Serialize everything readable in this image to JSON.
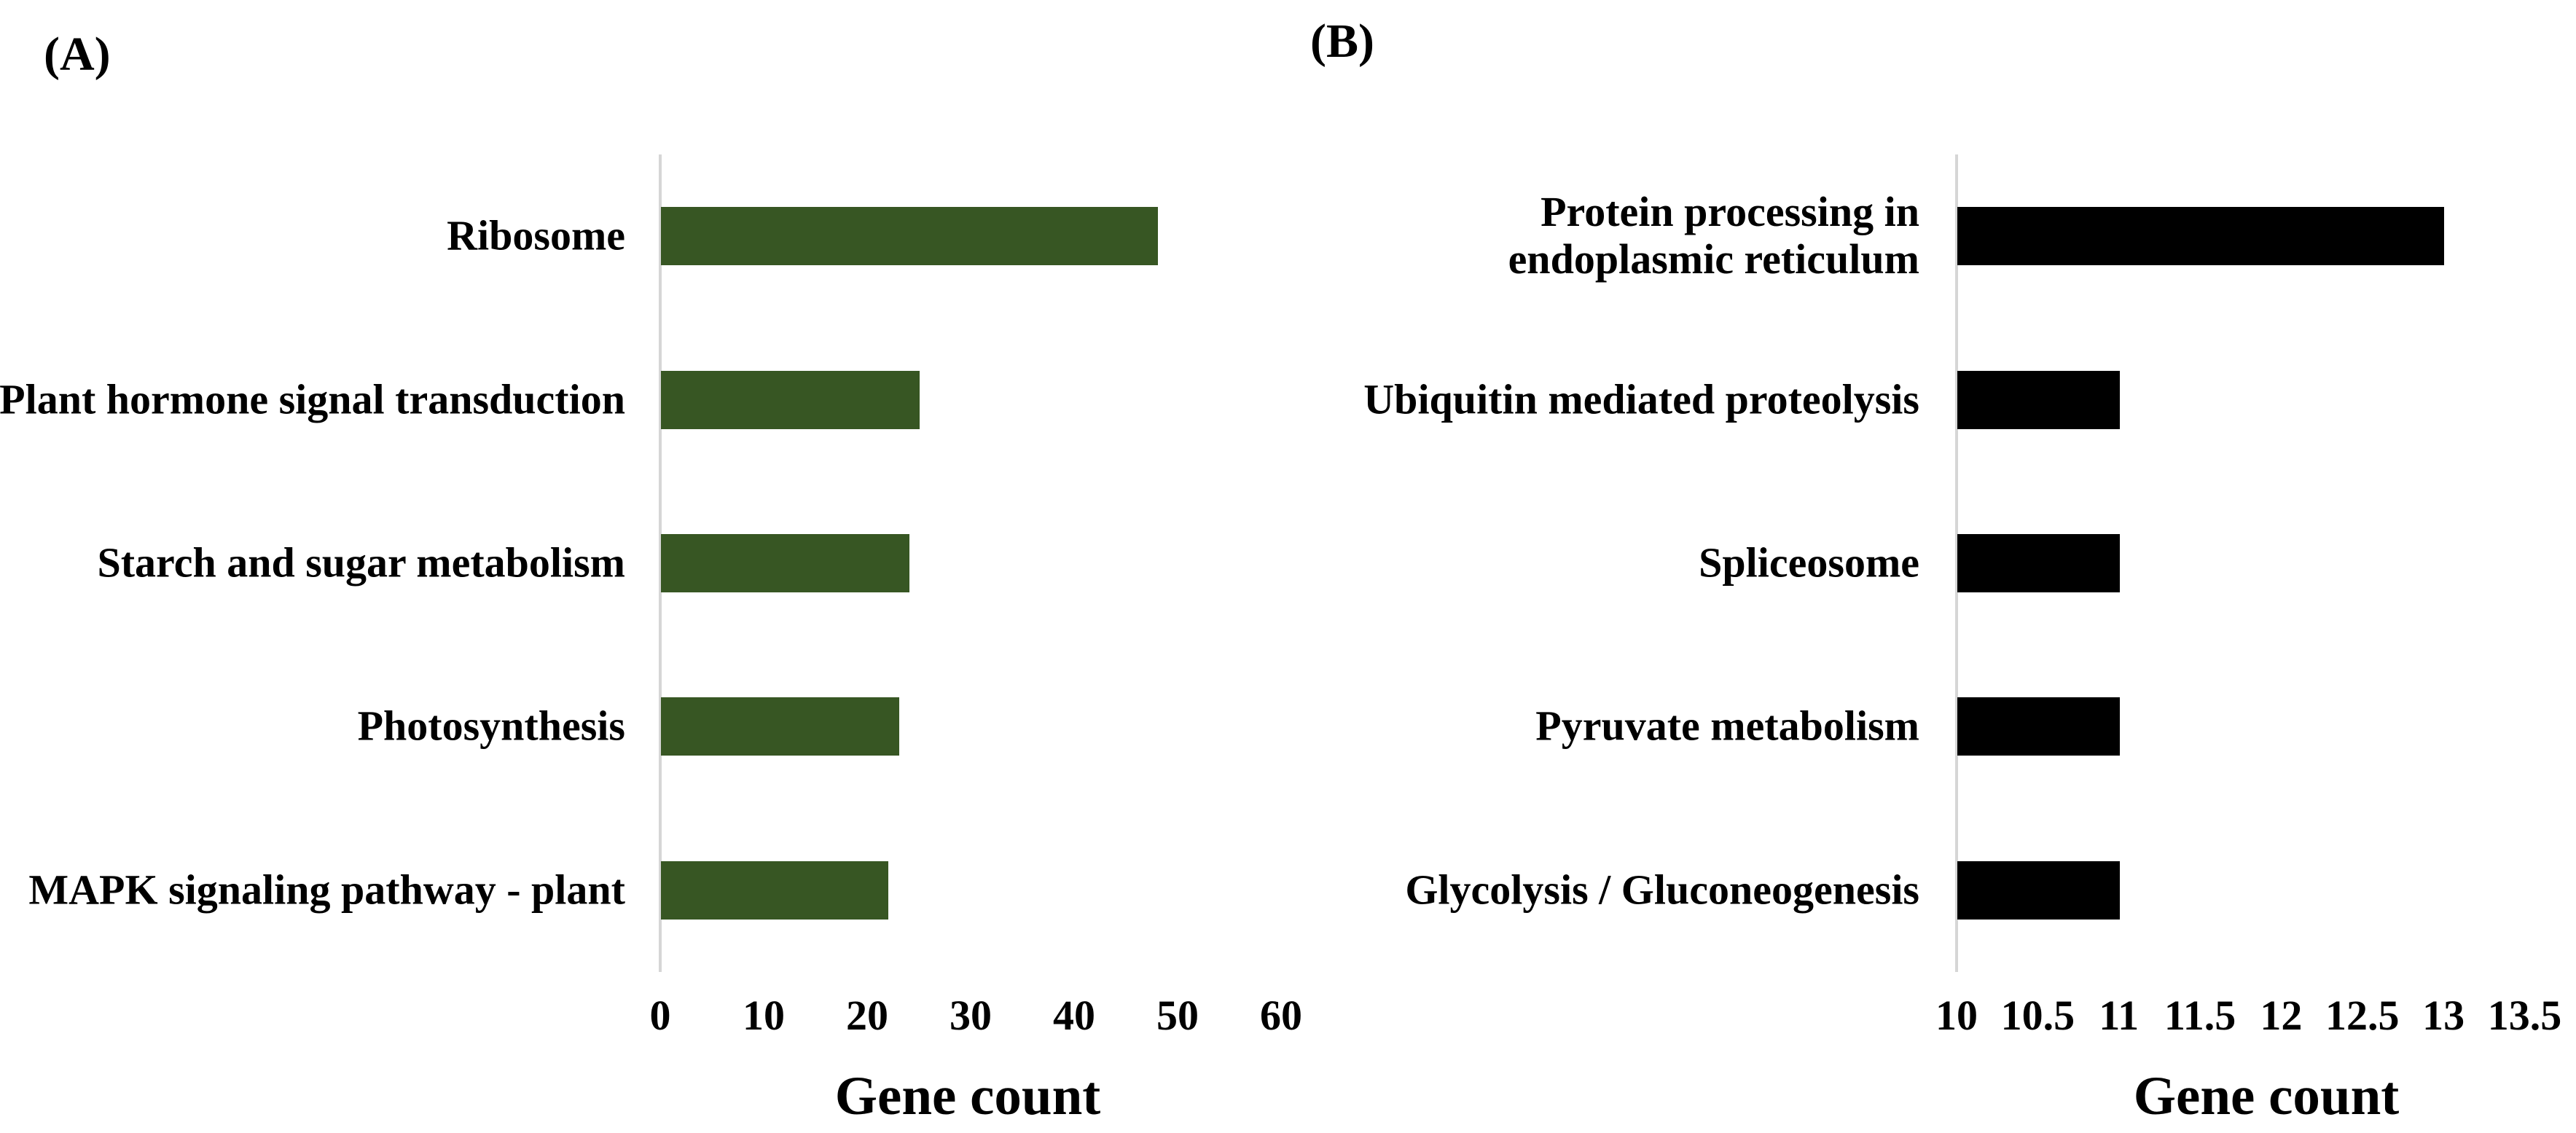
{
  "figure_caption": "",
  "axis_line_color": "#d6d6d6",
  "chart_data": [
    {
      "type": "bar",
      "orientation": "horizontal",
      "title": "(A)",
      "categories": [
        "Ribosome",
        "Plant hormone signal transduction",
        "Starch and sugar metabolism",
        "Photosynthesis",
        "MAPK signaling pathway - plant"
      ],
      "values": [
        48,
        25,
        24,
        23,
        22
      ],
      "xlabel": "Gene count",
      "xticks": [
        0,
        10,
        20,
        30,
        40,
        50,
        60
      ],
      "xtick_labels": [
        "0",
        "10",
        "20",
        "30",
        "40",
        "50",
        "60"
      ],
      "xlim": [
        0,
        60
      ],
      "bar_color": "#375623",
      "grid": false,
      "legend": null
    },
    {
      "type": "bar",
      "orientation": "horizontal",
      "title": "(B)",
      "categories": [
        "Protein processing in\nendoplasmic reticulum",
        "Ubiquitin mediated proteolysis",
        "Spliceosome",
        "Pyruvate metabolism",
        "Glycolysis / Gluconeogenesis"
      ],
      "values": [
        13,
        11,
        11,
        11,
        11
      ],
      "xlabel": "Gene count",
      "xticks": [
        10,
        10.5,
        11,
        11.5,
        12,
        12.5,
        13,
        13.5
      ],
      "xtick_labels": [
        "10",
        "10.5",
        "11",
        "11.5",
        "12",
        "12.5",
        "13",
        "13.5"
      ],
      "xlim": [
        10,
        13.5
      ],
      "bar_color": "#000000",
      "grid": false,
      "legend": null
    }
  ]
}
